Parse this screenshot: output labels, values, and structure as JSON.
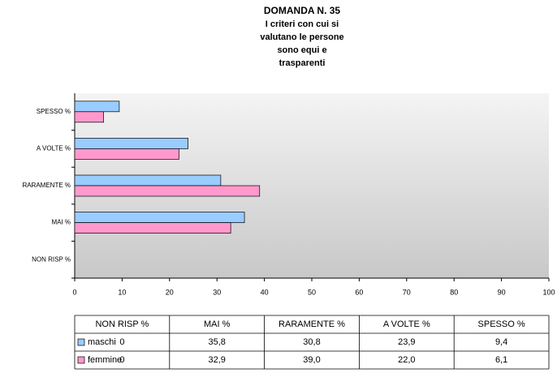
{
  "chart_data": {
    "type": "bar",
    "orientation": "horizontal",
    "title": "DOMANDA N. 35",
    "subtitle": [
      "I criteri con cui si",
      "valutano le persone",
      "sono equi e",
      "trasparenti"
    ],
    "categories": [
      "NON RISP %",
      "MAI %",
      "RARAMENTE %",
      "A VOLTE %",
      "SPESSO %"
    ],
    "series": [
      {
        "name": "maschi",
        "color": "#99ccff",
        "values": [
          0,
          35.8,
          30.8,
          23.9,
          9.4
        ],
        "value_labels": [
          "0",
          "35,8",
          "30,8",
          "23,9",
          "9,4"
        ]
      },
      {
        "name": "femmine",
        "color": "#ff99cc",
        "values": [
          0,
          32.9,
          39.0,
          22.0,
          6.1
        ],
        "value_labels": [
          "0",
          "32,9",
          "39,0",
          "22,0",
          "6,1"
        ]
      }
    ],
    "xlim": [
      0,
      100
    ],
    "xticks": [
      0,
      10,
      20,
      30,
      40,
      50,
      60,
      70,
      80,
      90,
      100
    ],
    "data_table": true
  }
}
